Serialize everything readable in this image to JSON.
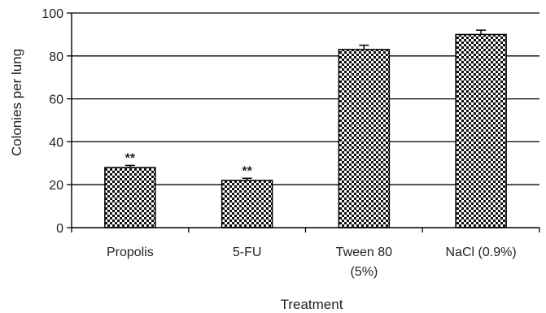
{
  "chart_data": {
    "type": "bar",
    "categories": [
      [
        "Propolis"
      ],
      [
        "5-FU"
      ],
      [
        "Tween 80",
        "(5%)"
      ],
      [
        "NaCl (0.9%)"
      ]
    ],
    "values": [
      28,
      22,
      83,
      90
    ],
    "errors": [
      1,
      1,
      2,
      2
    ],
    "annotations": [
      "**",
      "**",
      "",
      ""
    ],
    "xlabel": "Treatment",
    "ylabel": "Colonies per lung",
    "ylim": [
      0,
      100
    ],
    "yticks": [
      "0",
      "20",
      "40",
      "60",
      "80",
      "100"
    ],
    "grid": true,
    "bar_pattern": "checkerboard",
    "colors": {
      "bar_fill": "#111111",
      "bar_light": "#ffffff",
      "grid": "#000000"
    }
  }
}
